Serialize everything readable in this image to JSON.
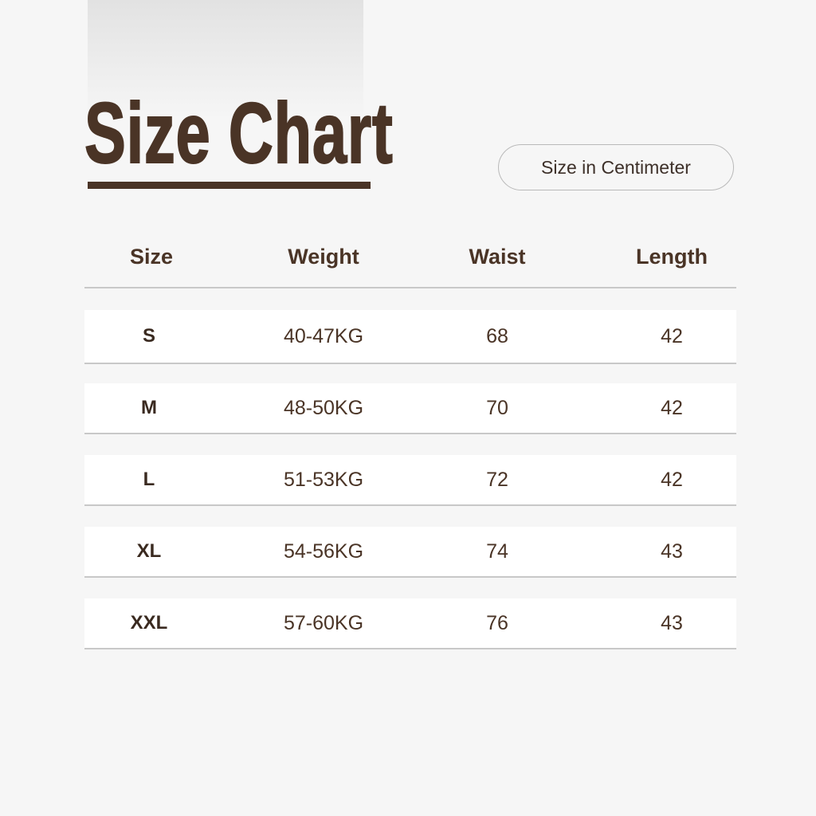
{
  "title": "Size Chart",
  "unit_label": "Size in Centimeter",
  "colors": {
    "brand": "#4a3426",
    "background": "#f6f6f6",
    "row": "#ffffff",
    "divider": "#c8c8c8"
  },
  "table": {
    "headers": [
      "Size",
      "Weight",
      "Waist",
      "Length"
    ],
    "rows": [
      [
        "S",
        "40-47KG",
        "68",
        "42"
      ],
      [
        "M",
        "48-50KG",
        "70",
        "42"
      ],
      [
        "L",
        "51-53KG",
        "72",
        "42"
      ],
      [
        "XL",
        "54-56KG",
        "74",
        "43"
      ],
      [
        "XXL",
        "57-60KG",
        "76",
        "43"
      ]
    ]
  }
}
